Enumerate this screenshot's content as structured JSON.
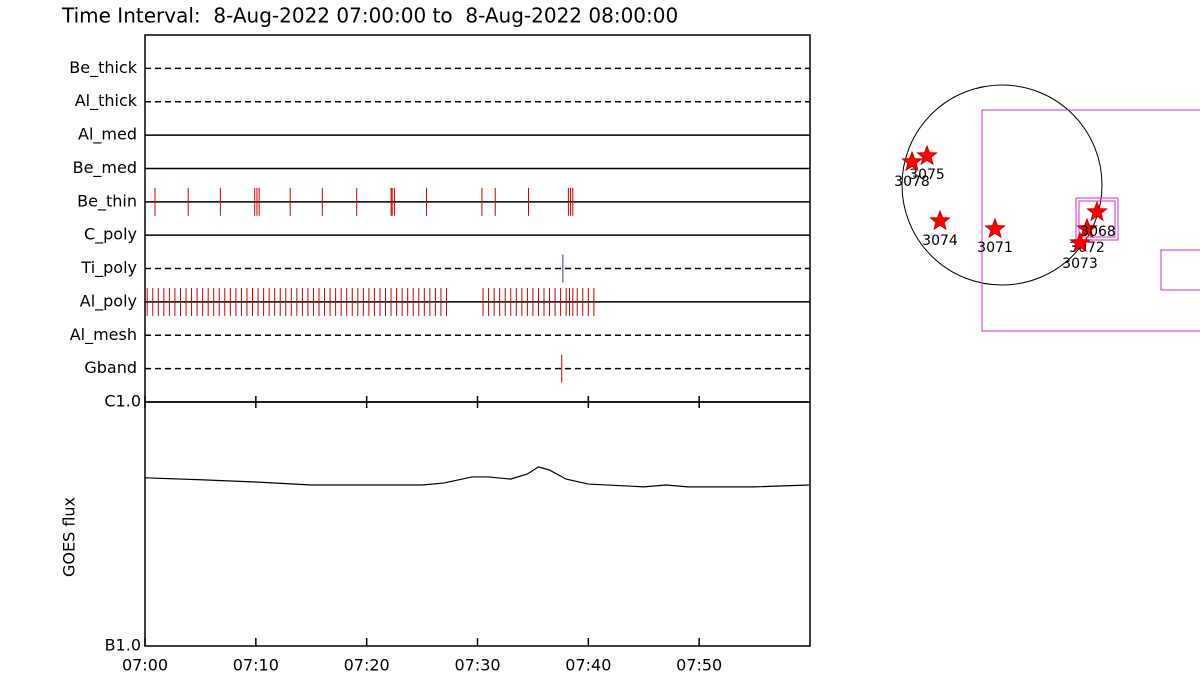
{
  "chart_data": [
    {
      "type": "timeline",
      "title": "Time Interval:  8-Aug-2022 07:00:00 to  8-Aug-2022 08:00:00",
      "xlim": [
        0,
        60
      ],
      "rows": [
        {
          "name": "Be_thick",
          "line": "dashed",
          "color": "#cc0000",
          "events": []
        },
        {
          "name": "Al_thick",
          "line": "dashed",
          "color": "#cc0000",
          "events": []
        },
        {
          "name": "Al_med",
          "line": "solid",
          "color": "#cc0000",
          "events": []
        },
        {
          "name": "Be_med",
          "line": "solid",
          "color": "#cc0000",
          "events": []
        },
        {
          "name": "Be_thin",
          "line": "solid",
          "color": "#cc0000",
          "events": [
            0.9,
            3.9,
            6.8,
            9.9,
            10.1,
            10.3,
            13.1,
            16.0,
            19.1,
            22.2,
            22.3,
            22.5,
            25.4,
            30.4,
            31.6,
            34.6,
            38.2,
            38.4,
            38.6
          ]
        },
        {
          "name": "C_poly",
          "line": "solid",
          "color": "#cc0000",
          "events": []
        },
        {
          "name": "Ti_poly",
          "line": "dashed",
          "color": "#3333aa",
          "events": [
            37.7
          ]
        },
        {
          "name": "Al_poly",
          "line": "solid",
          "color": "#cc0000",
          "events": [
            0.2,
            0.7,
            1.2,
            1.7,
            2.2,
            2.7,
            3.2,
            3.7,
            4.2,
            4.7,
            5.2,
            5.7,
            6.2,
            6.7,
            7.2,
            7.7,
            8.2,
            8.7,
            9.2,
            9.7,
            10.2,
            10.7,
            11.2,
            11.7,
            12.2,
            12.7,
            13.2,
            13.7,
            14.2,
            14.7,
            15.2,
            15.7,
            16.2,
            16.7,
            17.2,
            17.7,
            18.2,
            18.7,
            19.2,
            19.7,
            20.2,
            20.7,
            21.2,
            21.7,
            22.2,
            22.7,
            23.2,
            23.7,
            24.2,
            24.7,
            25.2,
            25.7,
            26.2,
            26.7,
            27.2,
            30.5,
            31,
            31.5,
            32,
            32.5,
            33,
            33.5,
            34,
            34.5,
            35,
            35.5,
            36,
            36.5,
            37,
            37.5,
            38,
            38.3,
            38.6,
            39,
            39.5,
            40,
            40.5
          ]
        },
        {
          "name": "Al_mesh",
          "line": "dashed",
          "color": "#cc0000",
          "events": []
        },
        {
          "name": "Gband",
          "line": "dashed",
          "color": "#cc0000",
          "events": [
            37.6
          ]
        }
      ]
    },
    {
      "type": "line",
      "y_label": "GOES flux",
      "log_y": true,
      "color": "#000000",
      "xlim": [
        0,
        60
      ],
      "xticks": [
        {
          "value": 0,
          "label": "07:00"
        },
        {
          "value": 10,
          "label": "07:10"
        },
        {
          "value": 20,
          "label": "07:20"
        },
        {
          "value": 30,
          "label": "07:30"
        },
        {
          "value": 40,
          "label": "07:40"
        },
        {
          "value": 50,
          "label": "07:50"
        }
      ],
      "ylim": [
        1e-07,
        1e-06
      ],
      "yticks": [
        {
          "value": 1e-06,
          "label": "C1.0"
        },
        {
          "value": 1e-07,
          "label": "B1.0"
        }
      ],
      "x": [
        0,
        5,
        10,
        15,
        20,
        25,
        27,
        29.5,
        31,
        33,
        34.5,
        35.5,
        36.5,
        38,
        40,
        45,
        47,
        49,
        55,
        59.9
      ],
      "values": [
        4.89e-07,
        4.8e-07,
        4.7e-07,
        4.57e-07,
        4.57e-07,
        4.57e-07,
        4.66e-07,
        4.93e-07,
        4.93e-07,
        4.83e-07,
        5.07e-07,
        5.42e-07,
        5.26e-07,
        4.83e-07,
        4.61e-07,
        4.49e-07,
        4.57e-07,
        4.49e-07,
        4.49e-07,
        4.57e-07
      ]
    },
    {
      "type": "map",
      "regions": [
        "3078",
        "3075",
        "3074",
        "3071",
        "3072",
        "3073",
        "3068"
      ]
    }
  ]
}
